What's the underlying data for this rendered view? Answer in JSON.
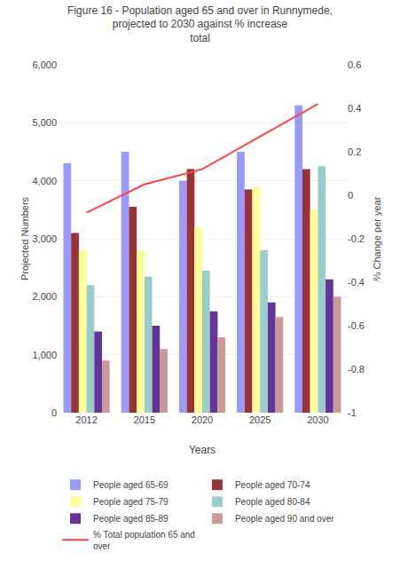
{
  "chart_data": {
    "type": "bar",
    "title": "Figure 16 - Population aged 65 and over in Runnymede, projected to 2030 against % increase\ntotal",
    "categories": [
      "2012",
      "2015",
      "2020",
      "2025",
      "2030"
    ],
    "xlabel": "Years",
    "ylabel": "Projected Numbers",
    "y2label": "% Change per year",
    "series": [
      {
        "name": "People aged 65-69",
        "color": "#9999FF",
        "values": [
          4300,
          4500,
          4000,
          4500,
          5300
        ]
      },
      {
        "name": "People aged 70-74",
        "color": "#993333",
        "values": [
          3100,
          3550,
          4200,
          3850,
          4200
        ]
      },
      {
        "name": "People aged 75-79",
        "color": "#FFFF99",
        "values": [
          2800,
          2800,
          3200,
          3900,
          3500
        ]
      },
      {
        "name": "People aged 80-84",
        "color": "#99CCCC",
        "values": [
          2200,
          2350,
          2450,
          2800,
          4250
        ]
      },
      {
        "name": "People aged 85-89",
        "color": "#663399",
        "values": [
          1400,
          1500,
          1750,
          1900,
          2300
        ]
      },
      {
        "name": "People aged 90 and over",
        "color": "#CC9999",
        "values": [
          900,
          1100,
          1300,
          1650,
          2000
        ]
      },
      {
        "name": "% Total population 65 and\nover",
        "type": "line",
        "axis": "y2",
        "color": "#FF4444",
        "values": [
          -0.08,
          0.05,
          0.12,
          0.27,
          0.42
        ]
      }
    ],
    "ylim": [
      0,
      6000
    ],
    "yticks": [
      0,
      {
        "value": 1000,
        "label": "1,000"
      },
      {
        "value": 2000,
        "label": "2,000"
      },
      {
        "value": 3000,
        "label": "3,000"
      },
      {
        "value": 4000,
        "label": "4,000"
      },
      {
        "value": 5000,
        "label": "5,000"
      },
      {
        "value": 6000,
        "label": "6,000"
      }
    ],
    "y2lim": [
      -1,
      0.6
    ],
    "y2ticks": [
      -1,
      -0.8,
      -0.6,
      -0.4,
      -0.2,
      0,
      0.2,
      0.4,
      0.6
    ],
    "grid": true,
    "legend": "bottom"
  }
}
